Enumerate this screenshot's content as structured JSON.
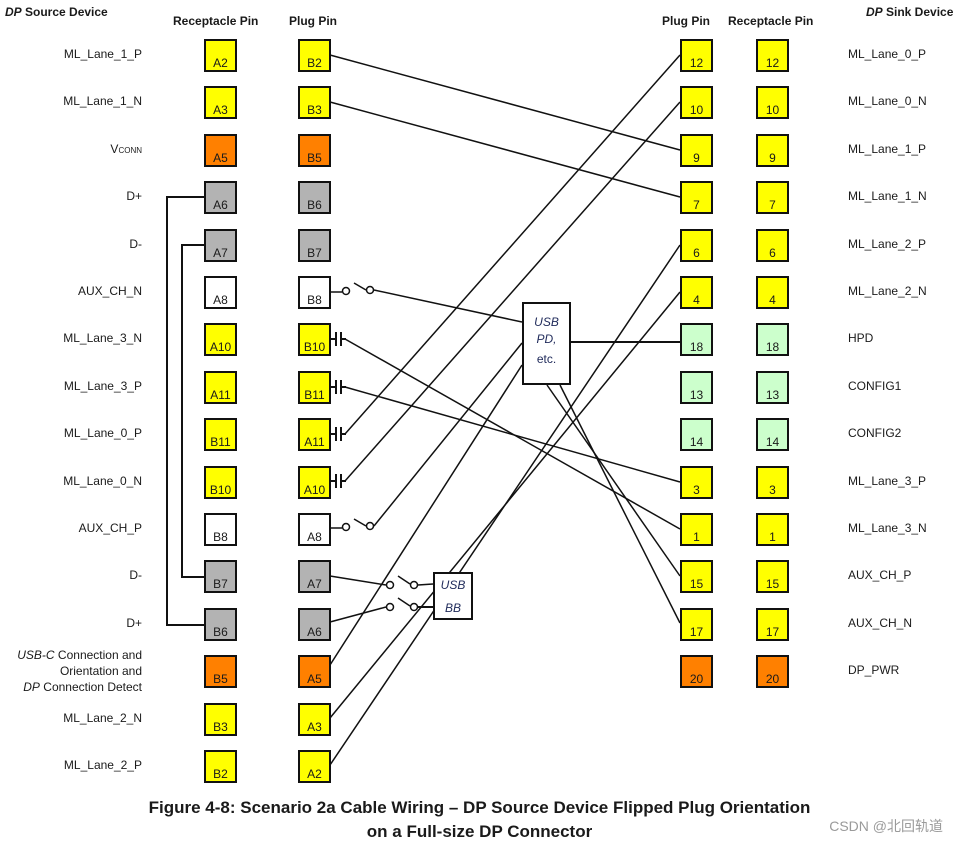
{
  "headers": {
    "source_device_em": "DP",
    "source_device": " Source Device",
    "sink_device_em": "DP",
    "sink_device": " Sink Device",
    "left_receptacle": "Receptacle  Pin",
    "left_plug": "Plug Pin",
    "right_plug": "Plug Pin",
    "right_receptacle": "Receptacle  Pin"
  },
  "colors": {
    "yellow": "#ffff00",
    "orange": "#ff8000",
    "gray": "#b3b3b3",
    "white": "#ffffff",
    "green": "#ccffcc"
  },
  "left_rows": [
    {
      "label": "ML_Lane_1_P",
      "receptacle": "A2",
      "plug": "B2",
      "color": "yellow"
    },
    {
      "label": "ML_Lane_1_N",
      "receptacle": "A3",
      "plug": "B3",
      "color": "yellow"
    },
    {
      "label": "V",
      "label_sub": "CONN",
      "receptacle": "A5",
      "plug": "B5",
      "color": "orange"
    },
    {
      "label": "D+",
      "receptacle": "A6",
      "plug": "B6",
      "color": "gray"
    },
    {
      "label": "D-",
      "receptacle": "A7",
      "plug": "B7",
      "color": "gray"
    },
    {
      "label": "AUX_CH_N",
      "receptacle": "A8",
      "plug": "B8",
      "color": "white"
    },
    {
      "label": "ML_Lane_3_N",
      "receptacle": "A10",
      "plug": "B10",
      "color": "yellow"
    },
    {
      "label": "ML_Lane_3_P",
      "receptacle": "A11",
      "plug": "B11",
      "color": "yellow"
    },
    {
      "label": "ML_Lane_0_P",
      "receptacle": "B11",
      "plug": "A11",
      "color": "yellow"
    },
    {
      "label": "ML_Lane_0_N",
      "receptacle": "B10",
      "plug": "A10",
      "color": "yellow"
    },
    {
      "label": "AUX_CH_P",
      "receptacle": "B8",
      "plug": "A8",
      "color": "white"
    },
    {
      "label": "D-",
      "receptacle": "B7",
      "plug": "A7",
      "color": "gray"
    },
    {
      "label": "D+",
      "receptacle": "B6",
      "plug": "A6",
      "color": "gray"
    },
    {
      "label_l1_em": "USB-C",
      "label_l1": " Connection and",
      "label_l2": "Orientation and",
      "label_l3_em": "DP",
      "label_l3": " Connection Detect",
      "receptacle": "B5",
      "plug": "A5",
      "color": "orange"
    },
    {
      "label": "ML_Lane_2_N",
      "receptacle": "B3",
      "plug": "A3",
      "color": "yellow"
    },
    {
      "label": "ML_Lane_2_P",
      "receptacle": "B2",
      "plug": "A2",
      "color": "yellow"
    }
  ],
  "right_rows": [
    {
      "label": "ML_Lane_0_P",
      "plug": "12",
      "receptacle": "12",
      "color": "yellow"
    },
    {
      "label": "ML_Lane_0_N",
      "plug": "10",
      "receptacle": "10",
      "color": "yellow"
    },
    {
      "label": "ML_Lane_1_P",
      "plug": "9",
      "receptacle": "9",
      "color": "yellow"
    },
    {
      "label": "ML_Lane_1_N",
      "plug": "7",
      "receptacle": "7",
      "color": "yellow"
    },
    {
      "label": "ML_Lane_2_P",
      "plug": "6",
      "receptacle": "6",
      "color": "yellow"
    },
    {
      "label": "ML_Lane_2_N",
      "plug": "4",
      "receptacle": "4",
      "color": "yellow"
    },
    {
      "label": "HPD",
      "plug": "18",
      "receptacle": "18",
      "color": "green"
    },
    {
      "label": "CONFIG1",
      "plug": "13",
      "receptacle": "13",
      "color": "green"
    },
    {
      "label": "CONFIG2",
      "plug": "14",
      "receptacle": "14",
      "color": "green"
    },
    {
      "label": "ML_Lane_3_P",
      "plug": "3",
      "receptacle": "3",
      "color": "yellow"
    },
    {
      "label": "ML_Lane_3_N",
      "plug": "1",
      "receptacle": "1",
      "color": "yellow"
    },
    {
      "label": "AUX_CH_P",
      "plug": "15",
      "receptacle": "15",
      "color": "yellow"
    },
    {
      "label": "AUX_CH_N",
      "plug": "17",
      "receptacle": "17",
      "color": "yellow"
    },
    {
      "label": "DP_PWR",
      "plug": "20",
      "receptacle": "20",
      "color": "orange"
    }
  ],
  "usb_pd_box": {
    "line1": "USB",
    "line2": "PD,",
    "line3": "etc."
  },
  "usb_bb_box": {
    "line1": "USB",
    "line2": "BB"
  },
  "caption": {
    "line1": "Figure 4-8: Scenario 2a Cable Wiring – DP Source Device Flipped Plug Orientation",
    "line2": "on a Full-size DP Connector"
  },
  "watermark": "CSDN @北回轨道"
}
